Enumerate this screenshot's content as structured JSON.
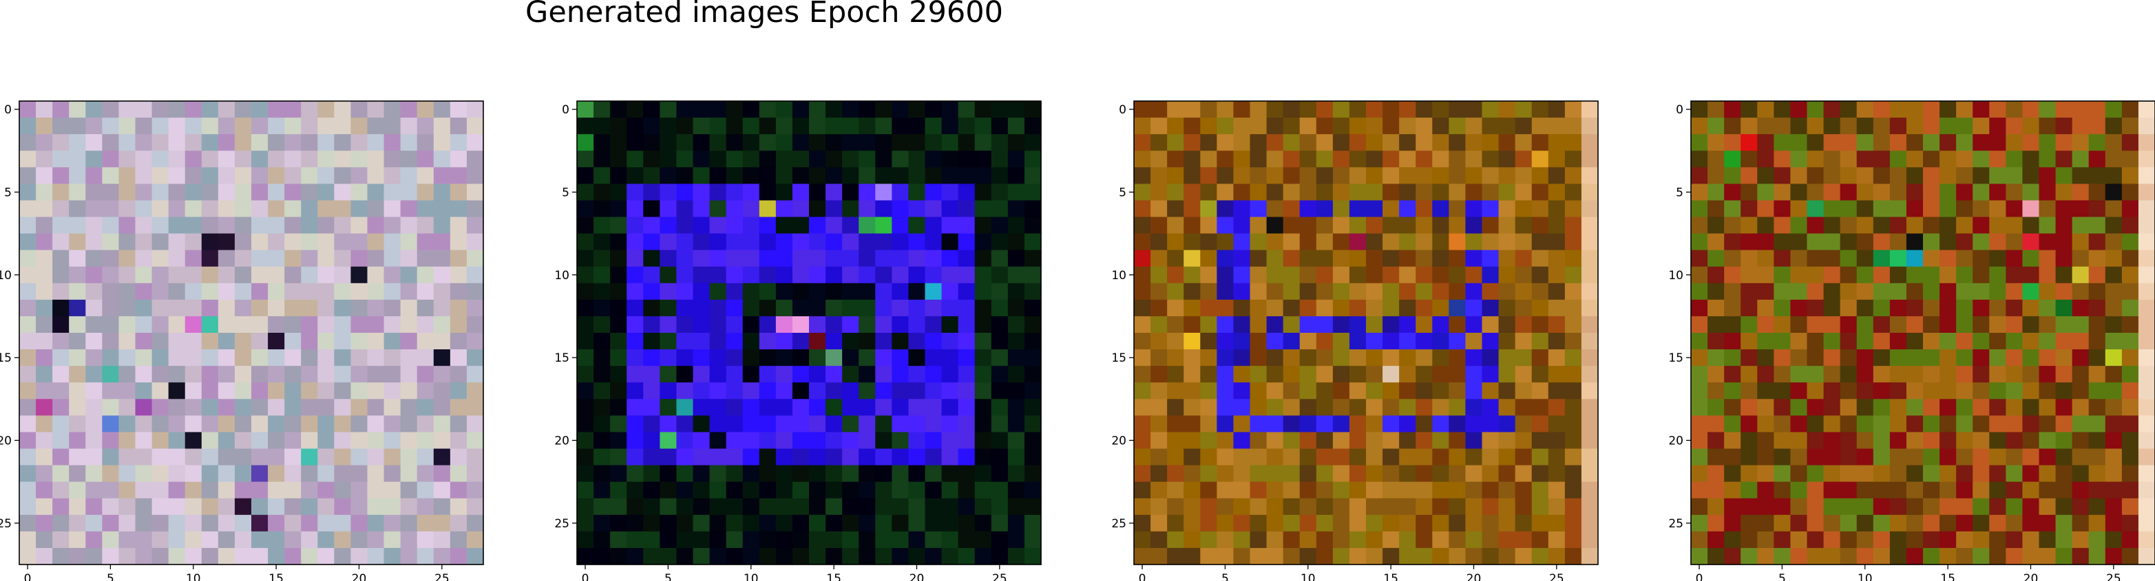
{
  "figure": {
    "title": "Generated images Epoch 29600"
  },
  "chart_data": {
    "type": "heatmap",
    "title": "Generated images Epoch 29600",
    "grid": false,
    "legend": "none",
    "panels": [
      {
        "name": "",
        "rows": 28,
        "cols": 28,
        "xlim": [
          -0.5,
          27.5
        ],
        "ylim": [
          27.5,
          -0.5
        ],
        "xticks": [
          "0",
          "5",
          "10",
          "15",
          "20",
          "25"
        ],
        "yticks": [
          "0",
          "5",
          "10",
          "15",
          "20",
          "25"
        ],
        "palette": [
          "#c9b8c9",
          "#b7a4c2",
          "#d8c6dd",
          "#a99cb6",
          "#cfd6c6",
          "#9fa0b2",
          "#e1cde6",
          "#bfc9d8",
          "#b48dc0",
          "#8fa7b5",
          "#c7b39d",
          "#ddd2c8"
        ],
        "accents": [
          {
            "r": 8,
            "c": 11,
            "color": "#1a0f2a"
          },
          {
            "r": 8,
            "c": 12,
            "color": "#20102c"
          },
          {
            "r": 9,
            "c": 11,
            "color": "#2b1337"
          },
          {
            "r": 12,
            "c": 2,
            "color": "#0a0a1a"
          },
          {
            "r": 13,
            "c": 2,
            "color": "#120a24"
          },
          {
            "r": 12,
            "c": 3,
            "color": "#2a22a0"
          },
          {
            "r": 13,
            "c": 10,
            "color": "#d66fd0"
          },
          {
            "r": 13,
            "c": 11,
            "color": "#3ec2a8"
          },
          {
            "r": 14,
            "c": 15,
            "color": "#221030"
          },
          {
            "r": 16,
            "c": 5,
            "color": "#4ab7a7"
          },
          {
            "r": 17,
            "c": 9,
            "color": "#101020"
          },
          {
            "r": 18,
            "c": 7,
            "color": "#9d4ab0"
          },
          {
            "r": 18,
            "c": 1,
            "color": "#b9409b"
          },
          {
            "r": 19,
            "c": 5,
            "color": "#5a7fd8"
          },
          {
            "r": 20,
            "c": 10,
            "color": "#141028"
          },
          {
            "r": 21,
            "c": 17,
            "color": "#42c0b0"
          },
          {
            "r": 22,
            "c": 14,
            "color": "#5a40b0"
          },
          {
            "r": 24,
            "c": 13,
            "color": "#2a1030"
          },
          {
            "r": 25,
            "c": 14,
            "color": "#401848"
          },
          {
            "r": 10,
            "c": 20,
            "color": "#141428"
          },
          {
            "r": 15,
            "c": 25,
            "color": "#0f0f25"
          },
          {
            "r": 21,
            "c": 25,
            "color": "#1a1030"
          }
        ]
      },
      {
        "name": "",
        "rows": 28,
        "cols": 28,
        "xlim": [
          -0.5,
          27.5
        ],
        "ylim": [
          27.5,
          -0.5
        ],
        "xticks": [
          "0",
          "5",
          "10",
          "15",
          "20",
          "25"
        ],
        "yticks": [
          "0",
          "5",
          "10",
          "15",
          "20",
          "25"
        ],
        "background": [
          "#03160c",
          "#0a2a10",
          "#02061a",
          "#0c3a14",
          "#061008",
          "#01040f",
          "#14401a",
          "#000010"
        ],
        "shape": "blue-square-ring",
        "shapeColors": [
          "#2a10ff",
          "#3a1ef0",
          "#1f0ad8",
          "#4a22ff",
          "#2510c0",
          "#5028e8"
        ],
        "accents": [
          {
            "r": 13,
            "c": 12,
            "color": "#e07adf"
          },
          {
            "r": 13,
            "c": 13,
            "color": "#f0a0e0"
          },
          {
            "r": 14,
            "c": 14,
            "color": "#6a0a14"
          },
          {
            "r": 15,
            "c": 15,
            "color": "#5a9a70"
          },
          {
            "r": 7,
            "c": 17,
            "color": "#30a050"
          },
          {
            "r": 7,
            "c": 18,
            "color": "#2fbf40"
          },
          {
            "r": 6,
            "c": 11,
            "color": "#c8c030"
          },
          {
            "r": 5,
            "c": 18,
            "color": "#a080ff"
          },
          {
            "r": 11,
            "c": 21,
            "color": "#20b0d0"
          },
          {
            "r": 18,
            "c": 6,
            "color": "#20a0a0"
          },
          {
            "r": 20,
            "c": 5,
            "color": "#40c060"
          },
          {
            "r": 2,
            "c": 0,
            "color": "#1a8a2a"
          },
          {
            "r": 0,
            "c": 0,
            "color": "#3a9a40"
          }
        ]
      },
      {
        "name": "",
        "rows": 28,
        "cols": 28,
        "xlim": [
          -0.5,
          27.5
        ],
        "ylim": [
          27.5,
          -0.5
        ],
        "xticks": [
          "0",
          "5",
          "10",
          "15",
          "20",
          "25"
        ],
        "yticks": [
          "0",
          "5",
          "10",
          "15",
          "20",
          "25"
        ],
        "palette": [
          "#8a5a10",
          "#a06a0c",
          "#6a4a08",
          "#b07a20",
          "#7a3a08",
          "#996600",
          "#c0822a",
          "#5a3a10",
          "#8a7a10",
          "#a04a10"
        ],
        "lastColumn": [
          "#e0b890",
          "#f0c8a0",
          "#d8a880",
          "#e8c090"
        ],
        "shape": "blue-square-outline",
        "shapeColors": [
          "#2a10e0",
          "#1f14c8",
          "#3a28ff",
          "#2010a0"
        ],
        "accents": [
          {
            "r": 9,
            "c": 0,
            "color": "#c01010"
          },
          {
            "r": 9,
            "c": 3,
            "color": "#e0c030"
          },
          {
            "r": 7,
            "c": 8,
            "color": "#101010"
          },
          {
            "r": 8,
            "c": 13,
            "color": "#9a1040"
          },
          {
            "r": 8,
            "c": 19,
            "color": "#e07a20"
          },
          {
            "r": 16,
            "c": 15,
            "color": "#e0c8b0"
          },
          {
            "r": 3,
            "c": 24,
            "color": "#e0a020"
          },
          {
            "r": 12,
            "c": 19,
            "color": "#203aa0"
          },
          {
            "r": 6,
            "c": 4,
            "color": "#a0a020"
          },
          {
            "r": 14,
            "c": 3,
            "color": "#f0c020"
          }
        ]
      },
      {
        "name": "",
        "rows": 28,
        "cols": 28,
        "xlim": [
          -0.5,
          27.5
        ],
        "ylim": [
          27.5,
          -0.5
        ],
        "xticks": [
          "0",
          "5",
          "10",
          "15",
          "20",
          "25"
        ],
        "yticks": [
          "0",
          "5",
          "10",
          "15",
          "20",
          "25"
        ],
        "palette": [
          "#8a5a10",
          "#6a3a08",
          "#a06a0c",
          "#7a1a10",
          "#5a7a10",
          "#b0701a",
          "#8a0a10",
          "#6a8a20",
          "#4a3a08",
          "#c05a20"
        ],
        "lastColumn": [
          "#f0d0b0",
          "#f8e0c8",
          "#e8c0a0",
          "#f0d8c0"
        ],
        "accents": [
          {
            "r": 2,
            "c": 3,
            "color": "#e01010"
          },
          {
            "r": 3,
            "c": 2,
            "color": "#20a020"
          },
          {
            "r": 9,
            "c": 12,
            "color": "#20c060"
          },
          {
            "r": 9,
            "c": 11,
            "color": "#109040"
          },
          {
            "r": 9,
            "c": 13,
            "color": "#10a0c0"
          },
          {
            "r": 8,
            "c": 13,
            "color": "#101010"
          },
          {
            "r": 8,
            "c": 20,
            "color": "#e02030"
          },
          {
            "r": 6,
            "c": 20,
            "color": "#f0a0b0"
          },
          {
            "r": 10,
            "c": 23,
            "color": "#d0c030"
          },
          {
            "r": 5,
            "c": 25,
            "color": "#101010"
          },
          {
            "r": 11,
            "c": 20,
            "color": "#20b040"
          },
          {
            "r": 12,
            "c": 22,
            "color": "#107020"
          },
          {
            "r": 15,
            "c": 25,
            "color": "#c0d020"
          },
          {
            "r": 6,
            "c": 7,
            "color": "#20a050"
          }
        ]
      }
    ]
  }
}
